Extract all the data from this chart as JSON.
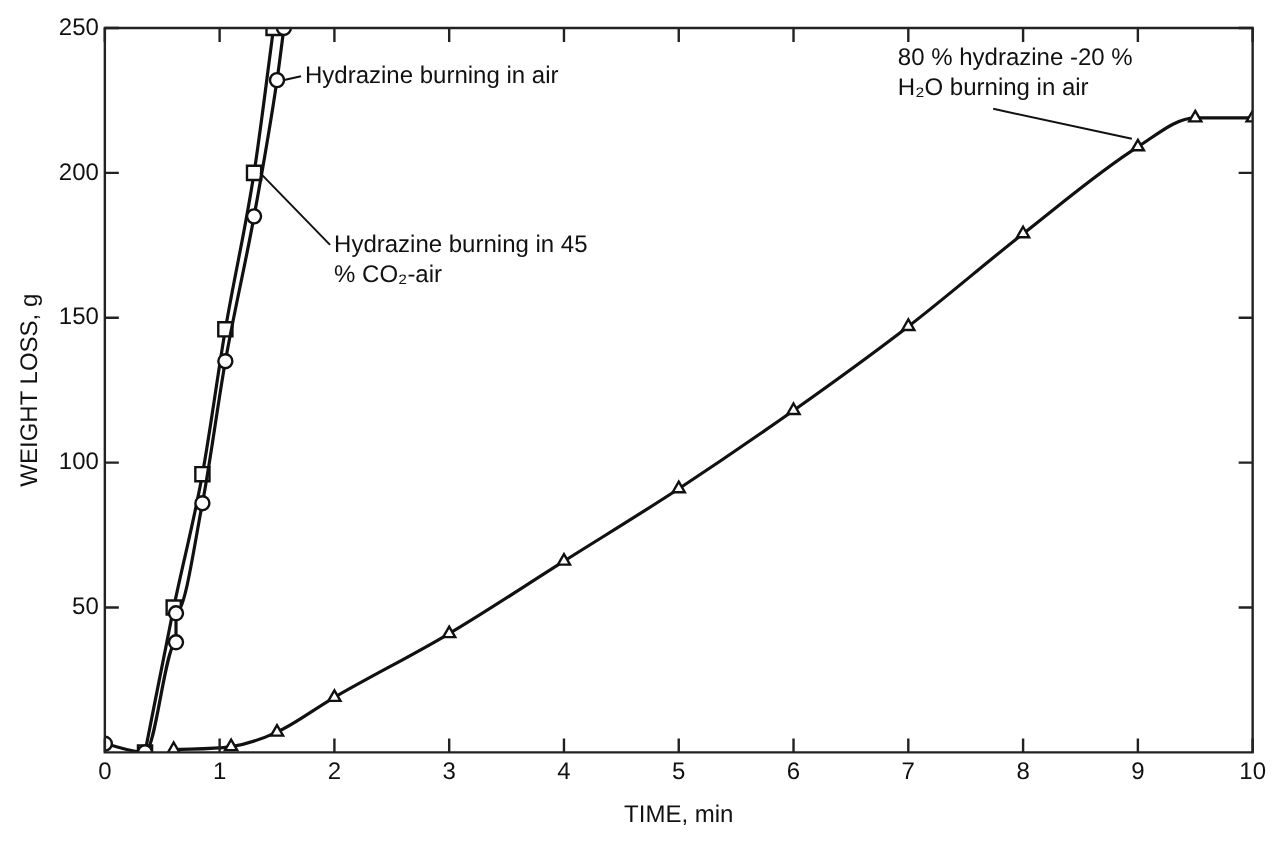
{
  "chart_data": {
    "type": "line",
    "xlabel": "TIME, min",
    "ylabel": "WEIGHT LOSS, g",
    "xlim": [
      0,
      10
    ],
    "xticks": [
      0,
      1,
      2,
      3,
      4,
      5,
      6,
      7,
      8,
      9,
      10
    ],
    "ylim": [
      0,
      250
    ],
    "yticks": [
      50,
      100,
      150,
      200,
      250
    ],
    "grid": false,
    "line_style": "solid",
    "series": [
      {
        "name": "Hydrazine burning in air",
        "color": "#111111",
        "marker": "circle",
        "x": [
          0,
          0.35,
          0.62,
          0.62,
          0.85,
          1.05,
          1.3,
          1.5,
          1.56
        ],
        "values": [
          3,
          0,
          38,
          48,
          86,
          135,
          185,
          232,
          250
        ]
      },
      {
        "name": "Hydrazine burning in 45 % CO₂-air",
        "color": "#111111",
        "marker": "square",
        "x": [
          0.35,
          0.6,
          0.85,
          1.05,
          1.3,
          1.47
        ],
        "values": [
          0,
          50,
          96,
          146,
          200,
          250
        ]
      },
      {
        "name": "80 % hydrazine -20 % H₂O burning in air",
        "color": "#111111",
        "marker": "triangle",
        "x": [
          0.6,
          1.1,
          1.5,
          2,
          3,
          4,
          5,
          6,
          7,
          8,
          9,
          9.5,
          10
        ],
        "values": [
          1,
          2,
          7,
          19,
          41,
          66,
          91,
          118,
          147,
          179,
          209,
          219,
          219
        ]
      }
    ]
  }
}
